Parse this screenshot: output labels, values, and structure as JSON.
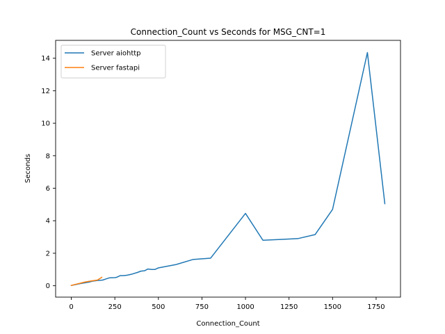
{
  "chart_data": {
    "type": "line",
    "title": "Connection_Count vs Seconds for MSG_CNT=1",
    "xlabel": "Connection_Count",
    "ylabel": "Seconds",
    "xlim": [
      -90,
      1890
    ],
    "ylim": [
      -0.7,
      15.1
    ],
    "xticks": [
      0,
      250,
      500,
      750,
      1000,
      1250,
      1500,
      1750
    ],
    "yticks": [
      0,
      2,
      4,
      6,
      8,
      10,
      12,
      14
    ],
    "grid": false,
    "legend_position": "upper-left",
    "series": [
      {
        "name": "Server aiohttp",
        "color": "#1f77b4",
        "x": [
          0,
          50,
          100,
          120,
          150,
          180,
          200,
          220,
          250,
          260,
          280,
          300,
          320,
          350,
          380,
          400,
          420,
          440,
          460,
          480,
          500,
          550,
          600,
          700,
          800,
          1000,
          1100,
          1200,
          1300,
          1400,
          1500,
          1700,
          1800
        ],
        "y": [
          0.02,
          0.13,
          0.22,
          0.28,
          0.32,
          0.35,
          0.42,
          0.49,
          0.5,
          0.52,
          0.62,
          0.62,
          0.65,
          0.72,
          0.82,
          0.9,
          0.92,
          1.03,
          1.0,
          1.0,
          1.1,
          1.2,
          1.3,
          1.62,
          1.7,
          4.45,
          2.8,
          2.85,
          2.9,
          3.15,
          4.7,
          14.35,
          5.05
        ]
      },
      {
        "name": "Server fastapi",
        "color": "#ff7f0e",
        "x": [
          0,
          25,
          50,
          75,
          100,
          125,
          150,
          175
        ],
        "y": [
          0.02,
          0.09,
          0.15,
          0.22,
          0.27,
          0.31,
          0.35,
          0.52
        ]
      }
    ]
  }
}
